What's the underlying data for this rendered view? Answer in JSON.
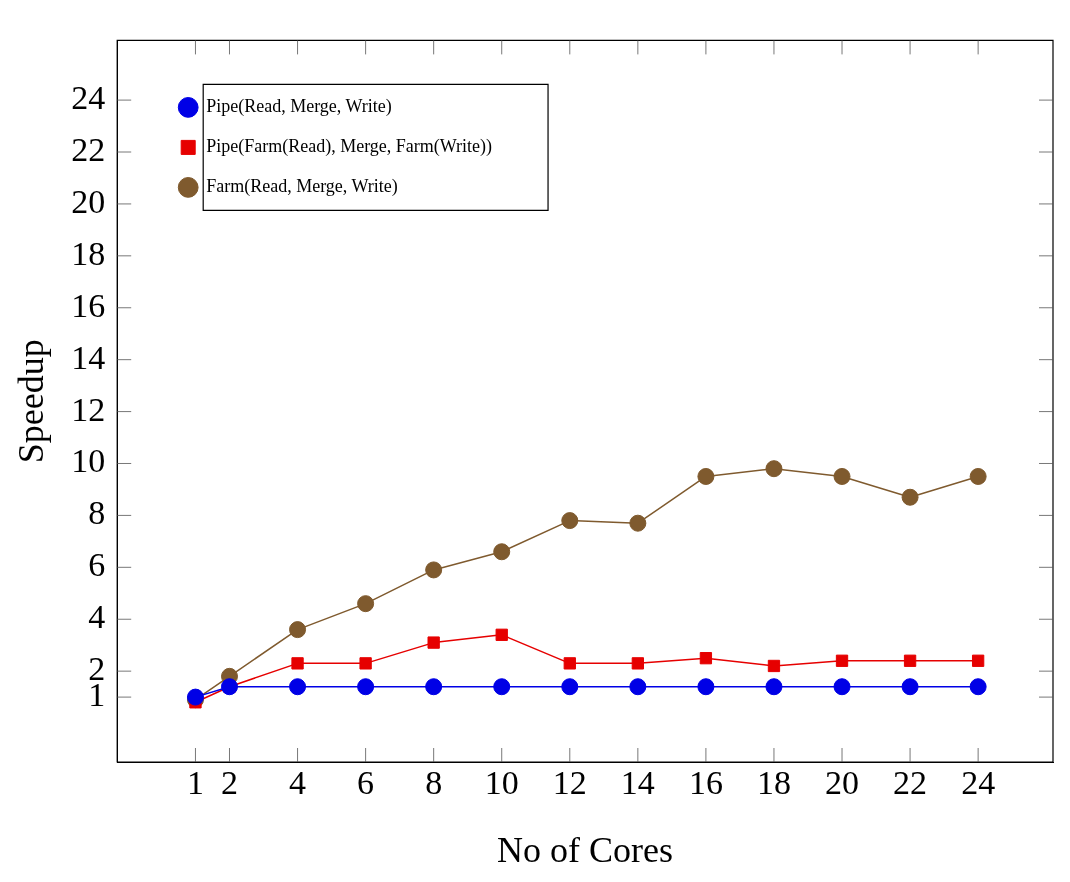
{
  "chart_data": {
    "type": "line",
    "xlabel": "No of Cores",
    "ylabel": "Speedup",
    "x": [
      1,
      2,
      4,
      6,
      8,
      10,
      12,
      14,
      16,
      18,
      20,
      22,
      24
    ],
    "series": [
      {
        "name": "Pipe(Read, Merge, Write)",
        "color": "#0000e6",
        "marker": "circle",
        "values": [
          1.0,
          1.4,
          1.4,
          1.4,
          1.4,
          1.4,
          1.4,
          1.4,
          1.4,
          1.4,
          1.4,
          1.4,
          1.4
        ]
      },
      {
        "name": "Pipe(Farm(Read), Merge, Farm(Write))",
        "color": "#e60000",
        "marker": "square",
        "values": [
          0.8,
          1.4,
          2.3,
          2.3,
          3.1,
          3.4,
          2.3,
          2.3,
          2.5,
          2.2,
          2.4,
          2.4,
          2.4
        ]
      },
      {
        "name": "Farm(Read, Merge, Write)",
        "color": "#7f5a2e",
        "marker": "circle",
        "values": [
          0.9,
          1.8,
          3.6,
          4.6,
          5.9,
          6.6,
          7.8,
          7.7,
          9.5,
          9.8,
          9.5,
          8.7,
          9.5
        ]
      }
    ],
    "xlim": [
      -1.3,
      26.2
    ],
    "ylim": [
      -1.5,
      26.3
    ],
    "xticks": [
      1,
      2,
      4,
      6,
      8,
      10,
      12,
      14,
      16,
      18,
      20,
      22,
      24
    ],
    "yticks": [
      1,
      2,
      4,
      6,
      8,
      10,
      12,
      14,
      16,
      18,
      20,
      22,
      24
    ],
    "grid": false,
    "legend": "top left"
  }
}
